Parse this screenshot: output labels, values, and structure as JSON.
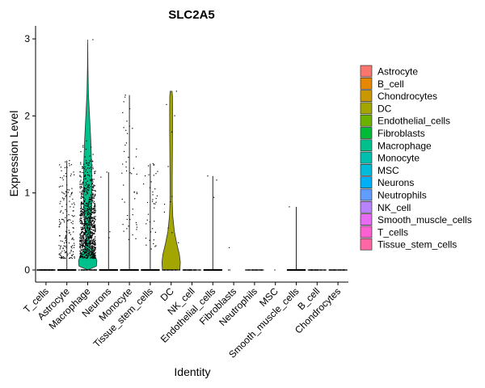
{
  "chart_data": {
    "type": "violin",
    "title": "SLC2A5",
    "xlabel": "Identity",
    "ylabel": "Expression Level",
    "ylim": [
      -0.15,
      3.15
    ],
    "yticks": [
      0,
      1,
      2,
      3
    ],
    "grid": false,
    "legend_position": "right",
    "categories": [
      "T_cells",
      "Astrocyte",
      "Macrophage",
      "Neurons",
      "Monocyte",
      "Tissue_stem_cells",
      "DC",
      "NK_cell",
      "Endothelial_cells",
      "Fibroblasts",
      "Neutrophils",
      "MSC",
      "Smooth_muscle_cells",
      "B_cell",
      "Chondrocytes"
    ],
    "series": [
      {
        "name": "T_cells",
        "color": "#FF6C91",
        "max": 0.0,
        "violin_shape": "flat",
        "nonzero_points": 0,
        "nonzero_range": [
          0,
          0
        ],
        "zero_points": 120
      },
      {
        "name": "Astrocyte",
        "color": "#F8766D",
        "max": 1.42,
        "violin_shape": "line",
        "nonzero_points": 170,
        "nonzero_range": [
          0.15,
          1.42
        ],
        "zero_points": 80
      },
      {
        "name": "Macrophage",
        "color": "#00C08B",
        "max": 2.99,
        "violin_shape": "wide",
        "nonzero_points": 900,
        "nonzero_range": [
          0.05,
          2.99
        ],
        "zero_points": 60
      },
      {
        "name": "Neurons",
        "color": "#00A9FF",
        "max": 1.27,
        "violin_shape": "line",
        "nonzero_points": 4,
        "nonzero_range": [
          0.25,
          1.27
        ],
        "zero_points": 90
      },
      {
        "name": "Monocyte",
        "color": "#00BFC4",
        "max": 2.27,
        "violin_shape": "line",
        "nonzero_points": 50,
        "nonzero_range": [
          0.3,
          2.27
        ],
        "zero_points": 90
      },
      {
        "name": "Tissue_stem_cells",
        "color": "#FF61C3",
        "max": 1.38,
        "violin_shape": "line",
        "nonzero_points": 40,
        "nonzero_range": [
          0.2,
          1.38
        ],
        "zero_points": 90
      },
      {
        "name": "DC",
        "color": "#A3A500",
        "max": 2.32,
        "violin_shape": "wide",
        "nonzero_points": 12,
        "nonzero_range": [
          0.2,
          2.32
        ],
        "zero_points": 40
      },
      {
        "name": "NK_cell",
        "color": "#B983FF",
        "max": 0.0,
        "violin_shape": "flat",
        "nonzero_points": 0,
        "nonzero_range": [
          0,
          0
        ],
        "zero_points": 60
      },
      {
        "name": "Endothelial_cells",
        "color": "#7CAE00",
        "max": 1.22,
        "violin_shape": "line",
        "nonzero_points": 3,
        "nonzero_range": [
          0.36,
          1.22
        ],
        "zero_points": 60
      },
      {
        "name": "Fibroblasts",
        "color": "#00BA38",
        "max": 0.29,
        "violin_shape": "none",
        "nonzero_points": 1,
        "nonzero_range": [
          0.29,
          0.29
        ],
        "zero_points": 2
      },
      {
        "name": "Neutrophils",
        "color": "#619CFF",
        "max": 0.0,
        "violin_shape": "flat",
        "nonzero_points": 0,
        "nonzero_range": [
          0,
          0
        ],
        "zero_points": 40
      },
      {
        "name": "MSC",
        "color": "#00BCD8",
        "max": 0.0,
        "violin_shape": "none",
        "nonzero_points": 0,
        "nonzero_range": [
          0,
          0
        ],
        "zero_points": 1
      },
      {
        "name": "Smooth_muscle_cells",
        "color": "#E76BF3",
        "max": 0.82,
        "violin_shape": "line",
        "nonzero_points": 1,
        "nonzero_range": [
          0.82,
          0.82
        ],
        "zero_points": 60
      },
      {
        "name": "B_cell",
        "color": "#E58700",
        "max": 0.0,
        "violin_shape": "flat",
        "nonzero_points": 0,
        "nonzero_range": [
          0,
          0
        ],
        "zero_points": 50
      },
      {
        "name": "Chondrocytes",
        "color": "#C99800",
        "max": 0.0,
        "violin_shape": "flat",
        "nonzero_points": 0,
        "nonzero_range": [
          0,
          0
        ],
        "zero_points": 50
      }
    ],
    "legend": [
      {
        "label": "Astrocyte",
        "color": "#F8766D"
      },
      {
        "label": "B_cell",
        "color": "#E58700"
      },
      {
        "label": "Chondrocytes",
        "color": "#C99800"
      },
      {
        "label": "DC",
        "color": "#A3A500"
      },
      {
        "label": "Endothelial_cells",
        "color": "#6BB100"
      },
      {
        "label": "Fibroblasts",
        "color": "#00BA38"
      },
      {
        "label": "Macrophage",
        "color": "#00C08B"
      },
      {
        "label": "Monocyte",
        "color": "#00BFAF"
      },
      {
        "label": "MSC",
        "color": "#00BCD8"
      },
      {
        "label": "Neurons",
        "color": "#00B0F6"
      },
      {
        "label": "Neutrophils",
        "color": "#619CFF"
      },
      {
        "label": "NK_cell",
        "color": "#B983FF"
      },
      {
        "label": "Smooth_muscle_cells",
        "color": "#E76BF3"
      },
      {
        "label": "T_cells",
        "color": "#FD61D1"
      },
      {
        "label": "Tissue_stem_cells",
        "color": "#FF67A4"
      }
    ]
  }
}
